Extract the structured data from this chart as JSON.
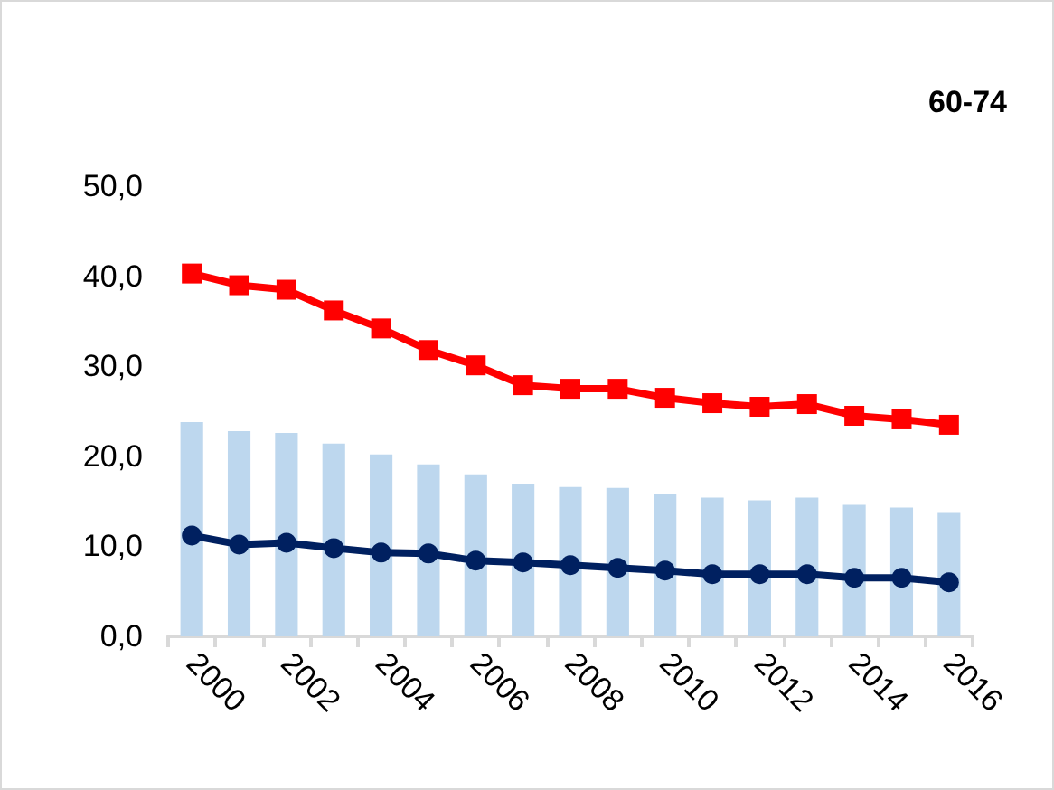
{
  "chart_data": {
    "type": "bar",
    "title": "60-74",
    "categories": [
      "2000",
      null,
      "2002",
      null,
      "2004",
      null,
      "2006",
      null,
      "2008",
      null,
      "2010",
      null,
      "2012",
      null,
      "2014",
      null,
      "2016"
    ],
    "series": [
      {
        "color": "#bdd7ee",
        "values": [
          23.8,
          22.8,
          22.6,
          21.4,
          20.2,
          19.1,
          18.0,
          16.9,
          16.6,
          16.5,
          15.8,
          15.4,
          15.1,
          15.4,
          14.6,
          14.3,
          13.8
        ]
      },
      {
        "type": "line",
        "color": "#ff0000",
        "marker": "square",
        "values": [
          40.3,
          39.0,
          38.5,
          36.2,
          34.2,
          31.8,
          30.1,
          27.9,
          27.5,
          27.5,
          26.5,
          25.9,
          25.5,
          25.8,
          24.5,
          24.1,
          23.5
        ]
      },
      {
        "type": "line",
        "color": "#002060",
        "marker": "circle",
        "values": [
          11.2,
          10.2,
          10.4,
          9.8,
          9.3,
          9.2,
          8.4,
          8.2,
          7.9,
          7.6,
          7.3,
          6.9,
          6.9,
          6.9,
          6.5,
          6.5,
          6.0
        ]
      }
    ],
    "ylim": [
      0,
      50
    ],
    "yticks": [
      {
        "value": 0,
        "label": "0,0"
      },
      {
        "value": 10,
        "label": "10,0"
      },
      {
        "value": 20,
        "label": "20,0"
      },
      {
        "value": 30,
        "label": "30,0"
      },
      {
        "value": 40,
        "label": "40,0"
      },
      {
        "value": 50,
        "label": "50,0"
      }
    ],
    "grid": false
  }
}
